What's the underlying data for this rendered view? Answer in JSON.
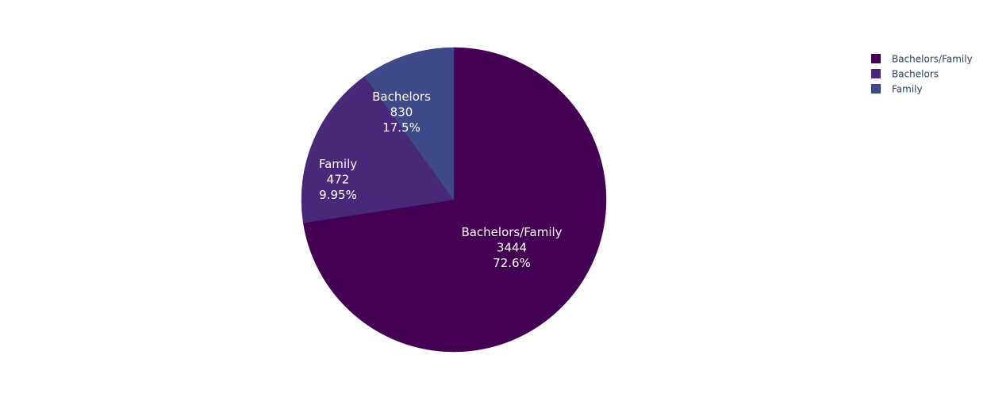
{
  "chart_data": {
    "type": "pie",
    "title": "",
    "slices": [
      {
        "label": "Bachelors/Family",
        "value": 3444,
        "percent": "72.6%",
        "color": "#440154"
      },
      {
        "label": "Bachelors",
        "value": 830,
        "percent": "17.5%",
        "color": "#482878"
      },
      {
        "label": "Family",
        "value": 472,
        "percent": "9.95%",
        "color": "#3e4989"
      }
    ],
    "legend": {
      "placement": "top-right",
      "entries": [
        "Bachelors/Family",
        "Bachelors",
        "Family"
      ]
    },
    "direction": "clockwise",
    "start_angle": "top"
  }
}
